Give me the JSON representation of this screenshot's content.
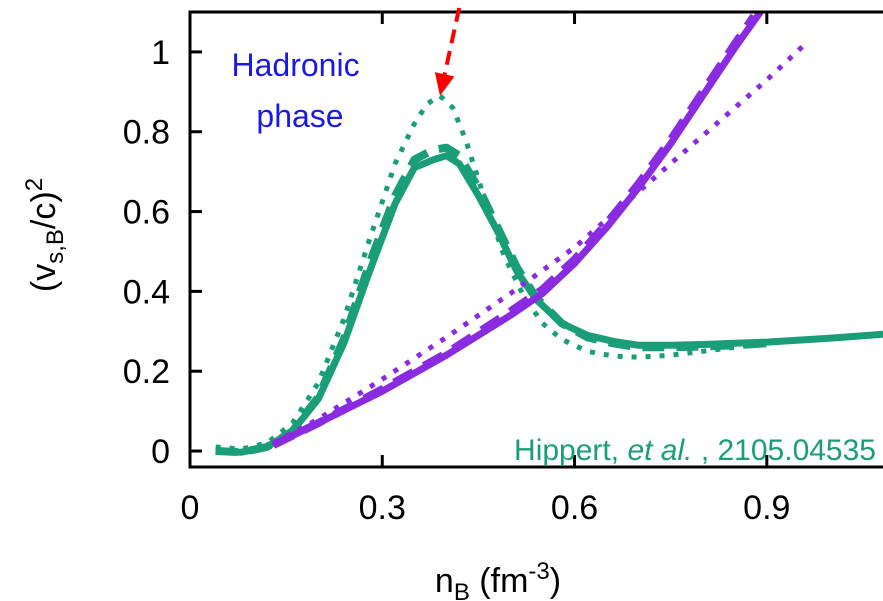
{
  "chart_data": {
    "type": "line",
    "xlabel": "n",
    "xlabel_sub": "B",
    "xlabel_unit": " (fm",
    "xlabel_unit_sup": "-3",
    "xlabel_close": ")",
    "ylabel": "(v",
    "ylabel_sub": "s,B",
    "ylabel_tail": "/c)",
    "ylabel_sup": "2",
    "xlim": [
      0,
      1.1
    ],
    "ylim": [
      -0.04,
      1.1
    ],
    "xticks": [
      0,
      0.3,
      0.6,
      0.9
    ],
    "xtick_labels": [
      "0",
      "0.3",
      "0.6",
      "0.9"
    ],
    "yticks": [
      0,
      0.2,
      0.4,
      0.6,
      0.8,
      1.0
    ],
    "ytick_labels": [
      "0",
      "0.2",
      "0.4",
      "0.6",
      "0.8",
      "1"
    ],
    "series": [
      {
        "group": "green",
        "color": "#1a9e77",
        "style": "solid",
        "x": [
          0.04,
          0.08,
          0.12,
          0.16,
          0.2,
          0.24,
          0.28,
          0.32,
          0.35,
          0.38,
          0.4,
          0.42,
          0.45,
          0.48,
          0.51,
          0.54,
          0.58,
          0.62,
          0.66,
          0.7,
          0.75,
          0.8,
          0.85,
          0.9,
          0.95,
          1.0,
          1.05,
          1.1
        ],
        "y": [
          0.0,
          -0.003,
          0.01,
          0.05,
          0.13,
          0.27,
          0.45,
          0.62,
          0.71,
          0.73,
          0.74,
          0.72,
          0.64,
          0.55,
          0.45,
          0.38,
          0.32,
          0.29,
          0.275,
          0.265,
          0.265,
          0.267,
          0.27,
          0.273,
          0.278,
          0.283,
          0.289,
          0.295
        ]
      },
      {
        "group": "green",
        "color": "#1a9e77",
        "style": "dashed",
        "x": [
          0.04,
          0.08,
          0.12,
          0.16,
          0.2,
          0.24,
          0.28,
          0.32,
          0.35,
          0.38,
          0.4,
          0.42,
          0.45,
          0.48,
          0.51,
          0.54,
          0.58,
          0.62,
          0.66,
          0.7,
          0.75,
          0.8,
          0.85,
          0.9
        ],
        "y": [
          0.0,
          -0.003,
          0.01,
          0.05,
          0.135,
          0.28,
          0.47,
          0.64,
          0.73,
          0.755,
          0.76,
          0.74,
          0.66,
          0.56,
          0.46,
          0.385,
          0.32,
          0.285,
          0.27,
          0.26,
          0.26,
          0.262,
          0.265,
          0.27
        ]
      },
      {
        "group": "green",
        "color": "#1a9e77",
        "style": "dotted",
        "x": [
          0.04,
          0.08,
          0.12,
          0.16,
          0.2,
          0.24,
          0.28,
          0.32,
          0.35,
          0.37,
          0.39,
          0.41,
          0.43,
          0.46,
          0.49,
          0.52,
          0.55,
          0.58,
          0.62,
          0.66,
          0.7,
          0.75,
          0.8,
          0.85,
          0.9,
          0.95
        ],
        "y": [
          0.01,
          0.005,
          0.02,
          0.07,
          0.17,
          0.33,
          0.53,
          0.72,
          0.82,
          0.87,
          0.89,
          0.86,
          0.78,
          0.63,
          0.49,
          0.39,
          0.32,
          0.28,
          0.25,
          0.238,
          0.235,
          0.24,
          0.25,
          0.26,
          0.27,
          0.28
        ]
      },
      {
        "group": "purple",
        "color": "#8a2be2",
        "style": "solid",
        "x": [
          0.13,
          0.2,
          0.3,
          0.4,
          0.5,
          0.55,
          0.6,
          0.65,
          0.7,
          0.75,
          0.8,
          0.85,
          0.89
        ],
        "y": [
          0.015,
          0.07,
          0.15,
          0.24,
          0.34,
          0.395,
          0.47,
          0.56,
          0.66,
          0.77,
          0.89,
          1.01,
          1.1
        ]
      },
      {
        "group": "purple",
        "color": "#8a2be2",
        "style": "dashed",
        "x": [
          0.13,
          0.2,
          0.3,
          0.4,
          0.5,
          0.55,
          0.6,
          0.65,
          0.7,
          0.75,
          0.8,
          0.85,
          0.88
        ],
        "y": [
          0.015,
          0.07,
          0.155,
          0.245,
          0.35,
          0.405,
          0.48,
          0.57,
          0.67,
          0.78,
          0.9,
          1.02,
          1.09
        ]
      },
      {
        "group": "purple",
        "color": "#8a2be2",
        "style": "dotted",
        "x": [
          0.13,
          0.2,
          0.3,
          0.4,
          0.5,
          0.6,
          0.7,
          0.8,
          0.9,
          0.96
        ],
        "y": [
          0.02,
          0.08,
          0.18,
          0.285,
          0.395,
          0.51,
          0.65,
          0.79,
          0.93,
          1.02
        ]
      }
    ],
    "arrow": {
      "color": "#ff0000",
      "x": [
        0.42,
        0.39
      ],
      "y": [
        1.11,
        0.89
      ]
    },
    "annotations": [
      {
        "lines": [
          "Hadronic",
          "phase"
        ],
        "color": "#1a1ae6"
      },
      {
        "prefix": "Hippert, ",
        "italic": "et al.",
        "suffix": " , 2105.04535",
        "color": "#1a9e77"
      }
    ]
  }
}
